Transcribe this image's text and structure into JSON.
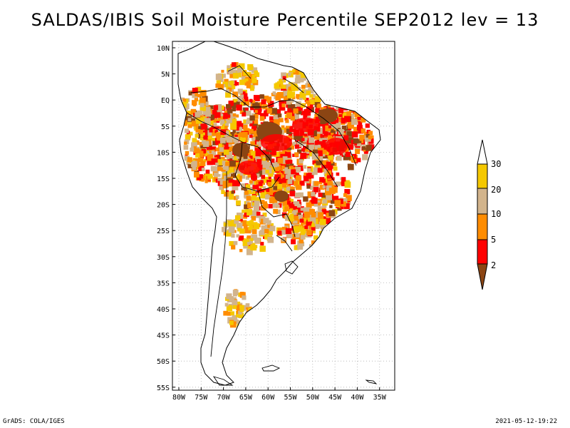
{
  "title": "SALDAS/IBIS Soil Moisture Percentile SEP2012 lev = 13",
  "footer": {
    "left": "GrADS: COLA/IGES",
    "right": "2021-05-12-19:22"
  },
  "map": {
    "lat_labels": [
      "10N",
      "5N",
      "EQ",
      "5S",
      "10S",
      "15S",
      "20S",
      "25S",
      "30S",
      "35S",
      "40S",
      "45S",
      "50S",
      "55S"
    ],
    "lon_labels": [
      "80W",
      "75W",
      "70W",
      "65W",
      "60W",
      "55W",
      "50W",
      "45W",
      "40W",
      "35W"
    ],
    "grid": true,
    "region": "South America"
  },
  "legend": {
    "placement": "right",
    "labels": [
      "30",
      "20",
      "10",
      "5",
      "2"
    ],
    "colors": {
      "above_30": "#ffffff",
      "20_30": "#f5c800",
      "10_20": "#d2b48c",
      "5_10": "#ff8c00",
      "2_5": "#ff0000",
      "below_2": "#8b4513"
    }
  }
}
